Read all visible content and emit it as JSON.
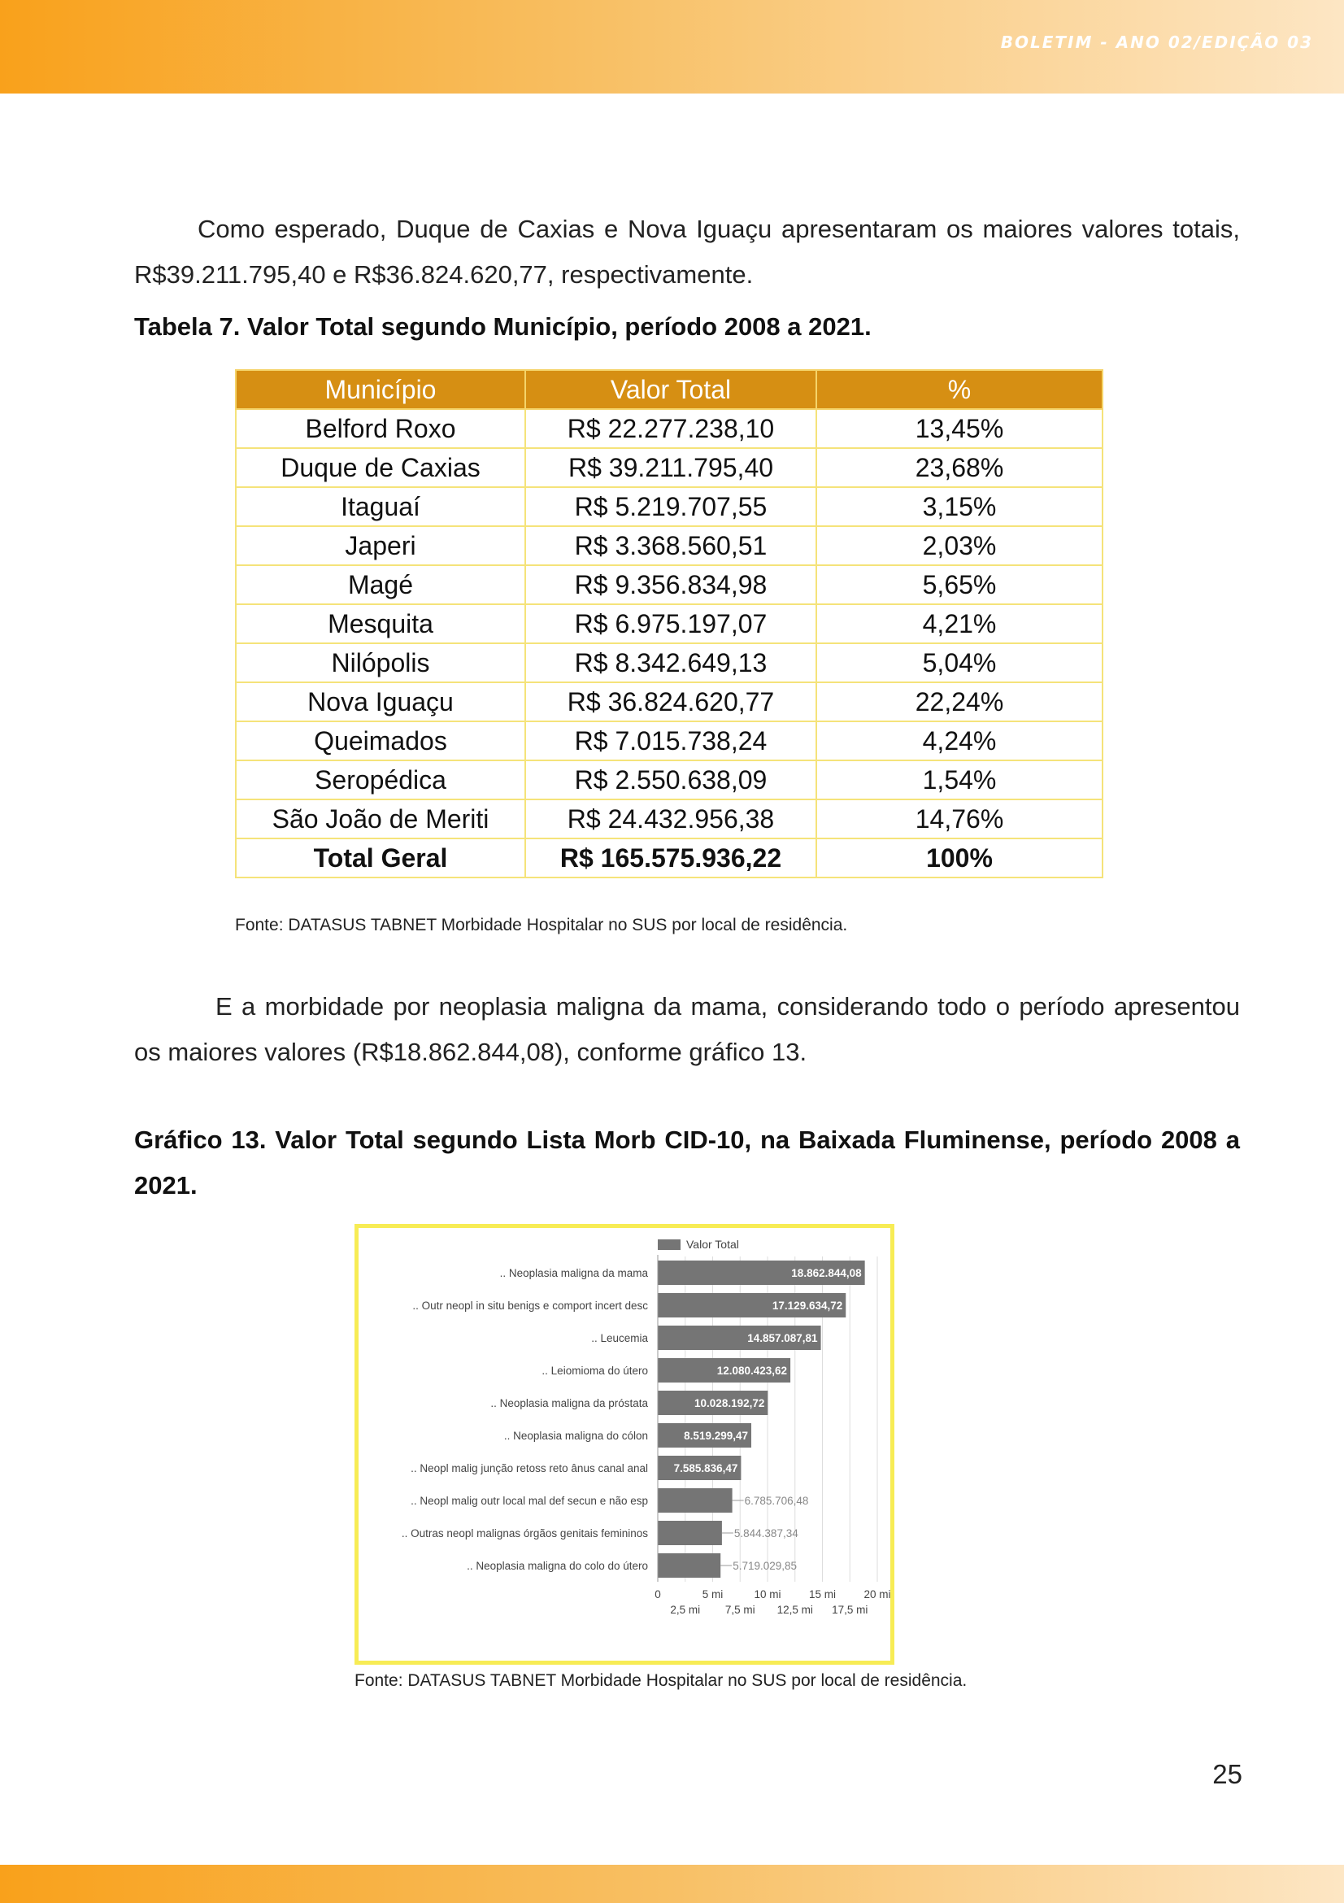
{
  "header": {
    "title": "BOLETIM - ANO 02/EDIÇÃO 03"
  },
  "paragraph1": "Como esperado, Duque de Caxias e Nova Iguaçu apresentaram os maiores valores totais, R$39.211.795,40 e R$36.824.620,77, respectivamente.",
  "table_caption": "Tabela 7. Valor Total segundo Município, período 2008 a 2021.",
  "table": {
    "headers": [
      "Município",
      "Valor Total",
      "%"
    ],
    "rows": [
      [
        "Belford Roxo",
        "R$ 22.277.238,10",
        "13,45%"
      ],
      [
        "Duque de Caxias",
        "R$ 39.211.795,40",
        "23,68%"
      ],
      [
        "Itaguaí",
        "R$ 5.219.707,55",
        "3,15%"
      ],
      [
        "Japeri",
        "R$ 3.368.560,51",
        "2,03%"
      ],
      [
        "Magé",
        "R$ 9.356.834,98",
        "5,65%"
      ],
      [
        "Mesquita",
        "R$ 6.975.197,07",
        "4,21%"
      ],
      [
        "Nilópolis",
        "R$ 8.342.649,13",
        "5,04%"
      ],
      [
        "Nova Iguaçu",
        "R$ 36.824.620,77",
        "22,24%"
      ],
      [
        "Queimados",
        "R$ 7.015.738,24",
        "4,24%"
      ],
      [
        "Seropédica",
        "R$ 2.550.638,09",
        "1,54%"
      ],
      [
        "São João de Meriti",
        "R$ 24.432.956,38",
        "14,76%"
      ]
    ],
    "total": [
      "Total Geral",
      "R$ 165.575.936,22",
      "100%"
    ]
  },
  "table_source": "Fonte: DATASUS TABNET Morbidade Hospitalar no SUS por local de residência.",
  "paragraph2": "E a morbidade por neoplasia maligna da mama, considerando todo o período apresentou os maiores valores (R$18.862.844,08), conforme gráfico 13.",
  "chart_caption": "Gráfico 13. Valor Total segundo Lista Morb CID-10, na Baixada Fluminense, período 2008 a 2021.",
  "chart_source": "Fonte: DATASUS TABNET Morbidade Hospitalar no SUS por local de residência.",
  "page_number": "25",
  "colors": {
    "bar": "#757575",
    "header_cell": "#d68f13",
    "frame": "#f7ec55",
    "accent": "#f9a11b"
  },
  "chart_data": {
    "type": "bar",
    "orientation": "horizontal",
    "legend": {
      "entries": [
        "Valor Total"
      ],
      "position": "top"
    },
    "grid": true,
    "xlim": [
      0,
      20000000
    ],
    "ticks_major": [
      {
        "value": 0,
        "label": "0"
      },
      {
        "value": 5000000,
        "label": "5 mi"
      },
      {
        "value": 10000000,
        "label": "10 mi"
      },
      {
        "value": 15000000,
        "label": "15 mi"
      },
      {
        "value": 20000000,
        "label": "20 mi"
      }
    ],
    "ticks_minor": [
      {
        "value": 2500000,
        "label": "2,5 mi"
      },
      {
        "value": 7500000,
        "label": "7,5 mi"
      },
      {
        "value": 12500000,
        "label": "12,5 mi"
      },
      {
        "value": 17500000,
        "label": "17,5 mi"
      }
    ],
    "categories": [
      ".. Neoplasia maligna da mama",
      ".. Outr neopl in situ benigs e comport incert desc",
      ".. Leucemia",
      ".. Leiomioma do útero",
      ".. Neoplasia maligna da próstata",
      ".. Neoplasia maligna do cólon",
      ".. Neopl malig junção retoss reto ânus canal anal",
      ".. Neopl malig outr local mal def secun e não esp",
      ".. Outras neopl malignas órgãos genitais femininos",
      ".. Neoplasia maligna do colo do útero"
    ],
    "series": [
      {
        "name": "Valor Total",
        "values": [
          18862844.08,
          17129634.72,
          14857087.81,
          12080423.62,
          10028192.72,
          8519299.47,
          7585836.47,
          6785706.48,
          5844387.34,
          5719029.85
        ],
        "labels": [
          "18.862.844,08",
          "17.129.634,72",
          "14.857.087,81",
          "12.080.423,62",
          "10.028.192,72",
          "8.519.299,47",
          "7.585.836,47",
          "6.785.706,48",
          "5.844.387,34",
          "5.719.029,85"
        ]
      }
    ]
  }
}
